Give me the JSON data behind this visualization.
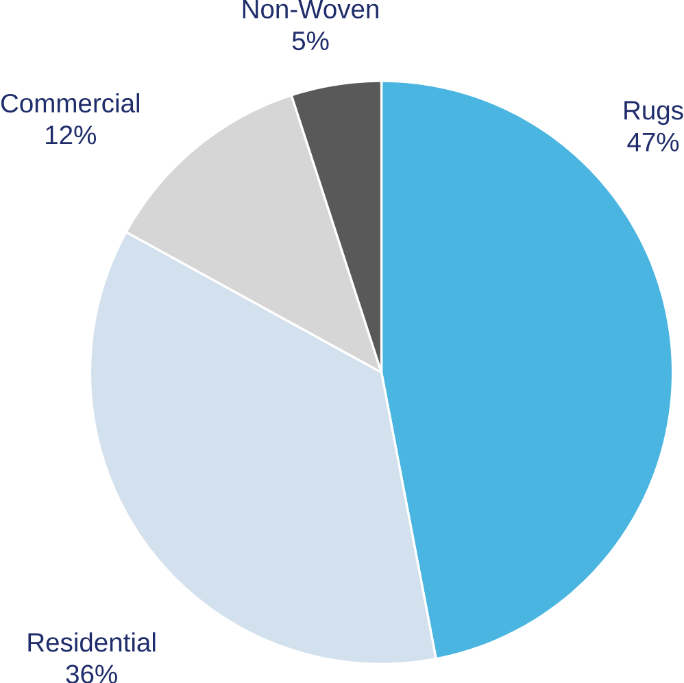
{
  "chart_data": {
    "type": "pie",
    "categories": [
      "Rugs",
      "Residential",
      "Commercial",
      "Non-Woven"
    ],
    "values": [
      47,
      36,
      12,
      5
    ],
    "value_labels": [
      "47%",
      "36%",
      "12%",
      "5%"
    ],
    "colors": [
      "#4ab5e0",
      "#d3e0ed",
      "#d6d6d6",
      "#595959"
    ]
  }
}
